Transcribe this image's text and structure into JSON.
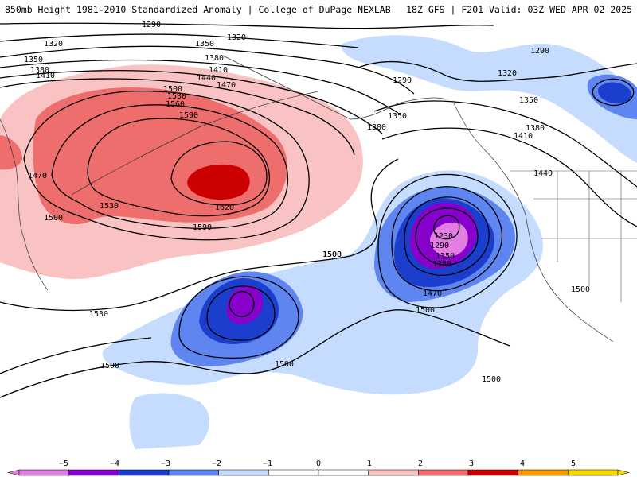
{
  "header": {
    "title": "850mb Height 1981-2010 Standardized Anomaly | College of DuPage NEXLAB",
    "run_info": "18Z GFS | F201 Valid: 03Z WED APR 02 2025"
  },
  "colors": {
    "anom_plus1": "#f9c3c3",
    "anom_plus2": "#ee6d6d",
    "anom_plus3": "#cc0000",
    "anom_minus1": "#c6dcff",
    "anom_minus2": "#5f86f0",
    "anom_minus3": "#1b3fcc",
    "anom_minus4": "#8800cc",
    "anom_minus5": "#e37de3",
    "anom_plus4": "#f49b00",
    "anom_plus5": "#fbd700"
  },
  "contour_labels": [
    {
      "text": "1290"
    },
    {
      "text": "1320"
    },
    {
      "text": "1350"
    },
    {
      "text": "1320"
    },
    {
      "text": "1350"
    },
    {
      "text": "1380"
    },
    {
      "text": "1410"
    },
    {
      "text": "1380"
    },
    {
      "text": "1410"
    },
    {
      "text": "1440"
    },
    {
      "text": "1470"
    },
    {
      "text": "1500"
    },
    {
      "text": "1530"
    },
    {
      "text": "1560"
    },
    {
      "text": "1590"
    },
    {
      "text": "1620"
    },
    {
      "text": "1590"
    },
    {
      "text": "1530"
    },
    {
      "text": "1470"
    },
    {
      "text": "1500"
    },
    {
      "text": "1530"
    },
    {
      "text": "1500"
    },
    {
      "text": "1500"
    },
    {
      "text": "1500"
    },
    {
      "text": "1290"
    },
    {
      "text": "1350"
    },
    {
      "text": "1380"
    },
    {
      "text": "1290"
    },
    {
      "text": "1320"
    },
    {
      "text": "1350"
    },
    {
      "text": "1380"
    },
    {
      "text": "1410"
    },
    {
      "text": "1440"
    },
    {
      "text": "1230"
    },
    {
      "text": "1290"
    },
    {
      "text": "1350"
    },
    {
      "text": "1380"
    },
    {
      "text": "1470"
    },
    {
      "text": "1500"
    },
    {
      "text": "1500"
    },
    {
      "text": "1500"
    },
    {
      "text": "1500"
    }
  ],
  "colorbar": {
    "ticks": [
      "−5",
      "−4",
      "−3",
      "−2",
      "−1",
      "0",
      "1",
      "2",
      "3",
      "4",
      "5"
    ],
    "segments": [
      "#e37de3",
      "#8800cc",
      "#1b3fcc",
      "#5f86f0",
      "#c6dcff",
      "#ffffff",
      "#ffffff",
      "#f9c3c3",
      "#ee6d6d",
      "#cc0000",
      "#f49b00",
      "#fbd700"
    ]
  }
}
